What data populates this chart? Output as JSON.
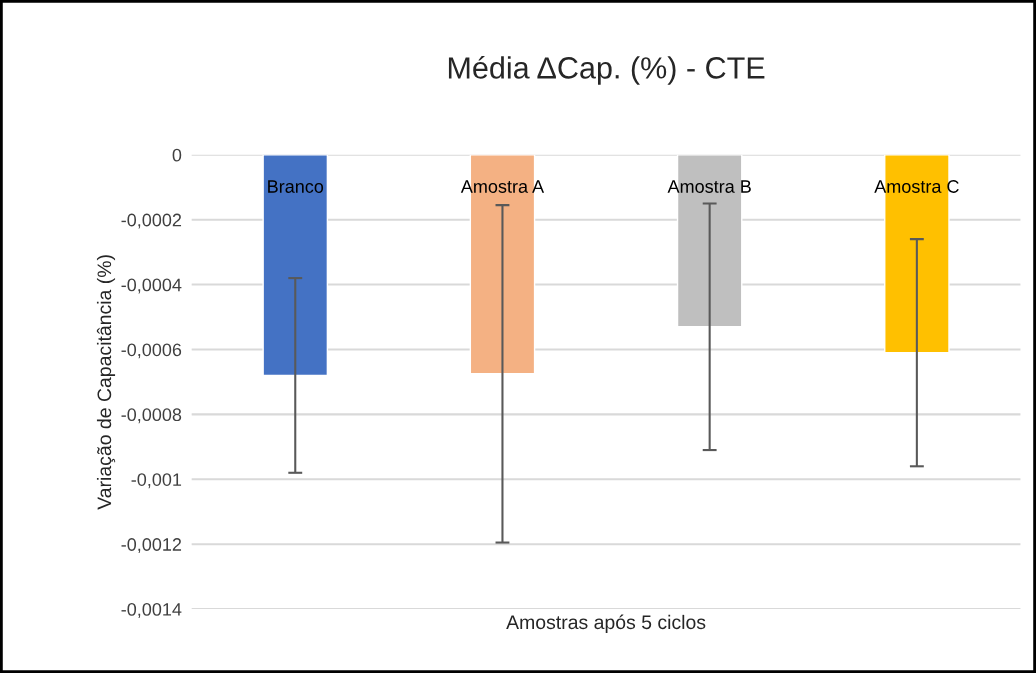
{
  "chart_data": {
    "type": "bar",
    "title": "Média ΔCap. (%) - CTE",
    "xlabel": "Amostras após 5 ciclos",
    "ylabel": "Variação de Capacitância (%)",
    "categories": [
      "Branco",
      "Amostra A",
      "Amostra B",
      "Amostra C"
    ],
    "values": [
      -0.00068,
      -0.000675,
      -0.00053,
      -0.00061
    ],
    "colors": [
      "#4472c4",
      "#f4b183",
      "#bfbfbf",
      "#ffc000"
    ],
    "errors": [
      0.0003,
      0.00052,
      0.00038,
      0.00035
    ],
    "ylim": [
      -0.0014,
      0
    ],
    "yticks": [
      {
        "value": -0.0014,
        "label": "-0,0014"
      },
      {
        "value": -0.0012,
        "label": "-0,0012"
      },
      {
        "value": -0.001,
        "label": "-0,001"
      },
      {
        "value": -0.0008,
        "label": "-0,0008"
      },
      {
        "value": -0.0006,
        "label": "-0,0006"
      },
      {
        "value": -0.0004,
        "label": "-0,0004"
      },
      {
        "value": -0.0002,
        "label": "-0,0002"
      },
      {
        "value": 0,
        "label": "0"
      }
    ],
    "grid": "y"
  }
}
